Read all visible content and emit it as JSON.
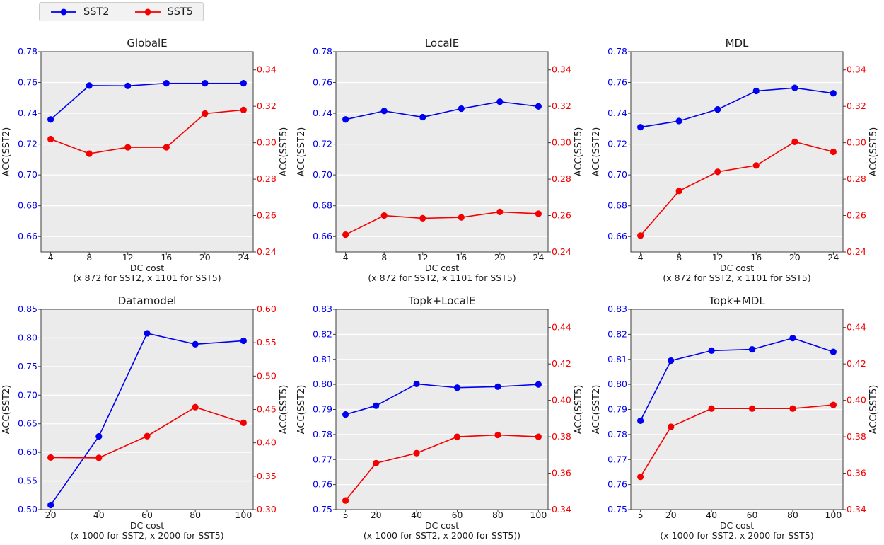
{
  "colors": {
    "sst2": "#0000f0",
    "sst5": "#f40000",
    "plot_bg": "#ebebeb",
    "grid": "#ffffff",
    "spine": "#3c3c3c",
    "tick": "#3c3c3c",
    "text": "#1a1a1a",
    "legend_bg": "#f2f2f2",
    "legend_border": "#cccccc"
  },
  "legend": {
    "items": [
      {
        "label": "SST2",
        "color": "#0000f0"
      },
      {
        "label": "SST5",
        "color": "#f40000"
      }
    ]
  },
  "chart_data": [
    {
      "type": "line",
      "title": "GlobalE",
      "xlabel": "DC cost",
      "xlabel_note": "(x 872 for SST2, x 1101 for SST5)",
      "x": [
        4,
        8,
        12,
        16,
        20,
        24
      ],
      "xticks": [
        "4",
        "8",
        "12",
        "16",
        "20",
        "24"
      ],
      "xlim": [
        3,
        25
      ],
      "left_axis": {
        "label": "ACC(SST2)",
        "lim": [
          0.65,
          0.78
        ],
        "ticks": [
          "0.66",
          "0.68",
          "0.70",
          "0.72",
          "0.74",
          "0.76",
          "0.78"
        ],
        "color": "#0000f0"
      },
      "right_axis": {
        "label": "ACC(SST5)",
        "lim": [
          0.24,
          0.35
        ],
        "ticks": [
          "0.24",
          "0.26",
          "0.28",
          "0.30",
          "0.32",
          "0.34"
        ],
        "color": "#f40000"
      },
      "series": [
        {
          "name": "SST2",
          "axis": "left",
          "color": "#0000f0",
          "values": [
            0.736,
            0.758,
            0.7578,
            0.7595,
            0.7595,
            0.7595
          ]
        },
        {
          "name": "SST5",
          "axis": "right",
          "color": "#f40000",
          "values": [
            0.302,
            0.294,
            0.2975,
            0.2975,
            0.316,
            0.318
          ]
        }
      ],
      "grid": true,
      "legend_position": "figure-top-left"
    },
    {
      "type": "line",
      "title": "LocalE",
      "xlabel": "DC cost",
      "xlabel_note": "(x 872 for SST2, x 1101 for SST5)",
      "x": [
        4,
        8,
        12,
        16,
        20,
        24
      ],
      "xticks": [
        "4",
        "8",
        "12",
        "16",
        "20",
        "24"
      ],
      "xlim": [
        3,
        25
      ],
      "left_axis": {
        "label": "ACC(SST2)",
        "lim": [
          0.65,
          0.78
        ],
        "ticks": [
          "0.66",
          "0.68",
          "0.70",
          "0.72",
          "0.74",
          "0.76",
          "0.78"
        ],
        "color": "#0000f0"
      },
      "right_axis": {
        "label": "ACC(SST5)",
        "lim": [
          0.24,
          0.35
        ],
        "ticks": [
          "0.24",
          "0.26",
          "0.28",
          "0.30",
          "0.32",
          "0.34"
        ],
        "color": "#f40000"
      },
      "series": [
        {
          "name": "SST2",
          "axis": "left",
          "color": "#0000f0",
          "values": [
            0.736,
            0.7415,
            0.7375,
            0.743,
            0.7475,
            0.7445
          ]
        },
        {
          "name": "SST5",
          "axis": "right",
          "color": "#f40000",
          "values": [
            0.2495,
            0.26,
            0.2585,
            0.259,
            0.262,
            0.261
          ]
        }
      ],
      "grid": true
    },
    {
      "type": "line",
      "title": "MDL",
      "xlabel": "DC cost",
      "xlabel_note": "(x 872 for SST2, x 1101 for SST5)",
      "x": [
        4,
        8,
        12,
        16,
        20,
        24
      ],
      "xticks": [
        "4",
        "8",
        "12",
        "16",
        "20",
        "24"
      ],
      "xlim": [
        3,
        25
      ],
      "left_axis": {
        "label": "ACC(SST2)",
        "lim": [
          0.65,
          0.78
        ],
        "ticks": [
          "0.66",
          "0.68",
          "0.70",
          "0.72",
          "0.74",
          "0.76",
          "0.78"
        ],
        "color": "#0000f0"
      },
      "right_axis": {
        "label": "ACC(SST5)",
        "lim": [
          0.24,
          0.35
        ],
        "ticks": [
          "0.24",
          "0.26",
          "0.28",
          "0.30",
          "0.32",
          "0.34"
        ],
        "color": "#f40000"
      },
      "series": [
        {
          "name": "SST2",
          "axis": "left",
          "color": "#0000f0",
          "values": [
            0.731,
            0.735,
            0.7425,
            0.7545,
            0.7565,
            0.753
          ]
        },
        {
          "name": "SST5",
          "axis": "right",
          "color": "#f40000",
          "values": [
            0.249,
            0.2735,
            0.284,
            0.2875,
            0.3005,
            0.295
          ]
        }
      ],
      "grid": true
    },
    {
      "type": "line",
      "title": "Datamodel",
      "xlabel": "DC cost",
      "xlabel_note": "(x 1000 for SST2, x 2000 for SST5)",
      "x": [
        20,
        40,
        60,
        80,
        100
      ],
      "xticks": [
        "20",
        "40",
        "60",
        "80",
        "100"
      ],
      "xlim": [
        16,
        104
      ],
      "left_axis": {
        "label": "ACC(SST2)",
        "lim": [
          0.5,
          0.85
        ],
        "ticks": [
          "0.50",
          "0.55",
          "0.60",
          "0.65",
          "0.70",
          "0.75",
          "0.80",
          "0.85"
        ],
        "color": "#0000f0"
      },
      "right_axis": {
        "label": "ACC(SST5)",
        "lim": [
          0.3,
          0.6
        ],
        "ticks": [
          "0.30",
          "0.35",
          "0.40",
          "0.45",
          "0.50",
          "0.55",
          "0.60"
        ],
        "color": "#f40000"
      },
      "series": [
        {
          "name": "SST2",
          "axis": "left",
          "color": "#0000f0",
          "values": [
            0.508,
            0.628,
            0.808,
            0.789,
            0.795
          ]
        },
        {
          "name": "SST5",
          "axis": "right",
          "color": "#f40000",
          "values": [
            0.378,
            0.3775,
            0.41,
            0.4535,
            0.43
          ]
        }
      ],
      "grid": true
    },
    {
      "type": "line",
      "title": "Topk+LocalE",
      "xlabel": "DC cost",
      "xlabel_note": "(x 1000 for SST2, x 2000 for SST5))",
      "x": [
        5,
        20,
        40,
        60,
        80,
        100
      ],
      "xticks": [
        "5",
        "20",
        "40",
        "60",
        "80",
        "100"
      ],
      "xlim": [
        0.25,
        104.75
      ],
      "left_axis": {
        "label": "ACC(SST2)",
        "lim": [
          0.75,
          0.83
        ],
        "ticks": [
          "0.75",
          "0.76",
          "0.77",
          "0.78",
          "0.79",
          "0.80",
          "0.81",
          "0.82",
          "0.83"
        ],
        "color": "#0000f0"
      },
      "right_axis": {
        "label": "ACC(SST5)",
        "lim": [
          0.34,
          0.45
        ],
        "ticks": [
          "0.34",
          "0.36",
          "0.38",
          "0.40",
          "0.42",
          "0.44"
        ],
        "color": "#f40000"
      },
      "series": [
        {
          "name": "SST2",
          "axis": "left",
          "color": "#0000f0",
          "values": [
            0.788,
            0.7915,
            0.8002,
            0.7987,
            0.7991,
            0.8
          ]
        },
        {
          "name": "SST5",
          "axis": "right",
          "color": "#f40000",
          "values": [
            0.345,
            0.3655,
            0.371,
            0.38,
            0.381,
            0.38
          ]
        }
      ],
      "grid": true
    },
    {
      "type": "line",
      "title": "Topk+MDL",
      "xlabel": "DC cost",
      "xlabel_note": "(x 1000 for SST2, x 2000 for SST5)",
      "x": [
        5,
        20,
        40,
        60,
        80,
        100
      ],
      "xticks": [
        "5",
        "20",
        "40",
        "60",
        "80",
        "100"
      ],
      "xlim": [
        0.25,
        104.75
      ],
      "left_axis": {
        "label": "ACC(SST2)",
        "lim": [
          0.75,
          0.83
        ],
        "ticks": [
          "0.75",
          "0.76",
          "0.77",
          "0.78",
          "0.79",
          "0.80",
          "0.81",
          "0.82",
          "0.83"
        ],
        "color": "#0000f0"
      },
      "right_axis": {
        "label": "ACC(SST5)",
        "lim": [
          0.34,
          0.45
        ],
        "ticks": [
          "0.34",
          "0.36",
          "0.38",
          "0.40",
          "0.42",
          "0.44"
        ],
        "color": "#f40000"
      },
      "series": [
        {
          "name": "SST2",
          "axis": "left",
          "color": "#0000f0",
          "values": [
            0.7855,
            0.8095,
            0.8135,
            0.814,
            0.8185,
            0.813
          ]
        },
        {
          "name": "SST5",
          "axis": "right",
          "color": "#f40000",
          "values": [
            0.358,
            0.3855,
            0.3955,
            0.3955,
            0.3955,
            0.3975
          ]
        }
      ],
      "grid": true
    }
  ]
}
